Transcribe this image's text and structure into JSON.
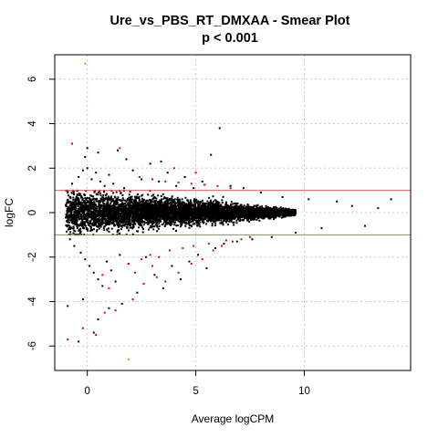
{
  "chart_data": {
    "type": "scatter",
    "title": "Ure_vs_PBS_RT_DMXAA - Smear Plot",
    "subtitle": "p < 0.001",
    "xlabel": "Average logCPM",
    "ylabel": "logFC",
    "xlim": [
      -1.5,
      14.9
    ],
    "ylim": [
      -7.1,
      7.1
    ],
    "x_ticks": [
      0,
      5,
      10
    ],
    "x_tick_labels": [
      "0",
      "5",
      "10"
    ],
    "y_ticks": [
      -6,
      -4,
      -2,
      0,
      2,
      4,
      6
    ],
    "y_tick_labels": [
      "-6",
      "-4",
      "-2",
      "0",
      "2",
      "4",
      "6"
    ],
    "grid": true,
    "threshold_lines": [
      1,
      -1
    ],
    "colors": {
      "not_significant": "#000000",
      "significant": "#e00000",
      "low_count": "#ff8c00",
      "threshold": "#e06060",
      "grid": "#c8c8c8"
    },
    "series": [
      {
        "color_key": "not_significant",
        "points": [
          [
            -0.9,
            0.9
          ],
          [
            -0.8,
            -1.2
          ],
          [
            -0.7,
            1.3
          ],
          [
            -0.6,
            -1.5
          ],
          [
            -0.4,
            1.6
          ],
          [
            -0.3,
            -1.8
          ],
          [
            -0.2,
            1.9
          ],
          [
            -0.1,
            -2.1
          ],
          [
            0.0,
            2.0
          ],
          [
            0.1,
            -2.4
          ],
          [
            0.2,
            1.5
          ],
          [
            0.3,
            -2.7
          ],
          [
            0.4,
            1.8
          ],
          [
            0.5,
            -3.0
          ],
          [
            0.6,
            1.4
          ],
          [
            0.7,
            -3.3
          ],
          [
            0.8,
            1.2
          ],
          [
            0.9,
            -2.2
          ],
          [
            1.0,
            1.7
          ],
          [
            1.1,
            -2.6
          ],
          [
            1.2,
            1.3
          ],
          [
            1.3,
            -3.1
          ],
          [
            1.4,
            2.8
          ],
          [
            1.5,
            -1.9
          ],
          [
            1.7,
            1.1
          ],
          [
            1.9,
            -2.3
          ],
          [
            2.1,
            1.9
          ],
          [
            2.3,
            -3.6
          ],
          [
            2.5,
            1.5
          ],
          [
            2.7,
            -2.0
          ],
          [
            2.9,
            2.2
          ],
          [
            3.1,
            -2.8
          ],
          [
            3.3,
            1.4
          ],
          [
            3.5,
            -3.4
          ],
          [
            3.7,
            1.8
          ],
          [
            3.9,
            -2.4
          ],
          [
            4.1,
            1.2
          ],
          [
            4.3,
            -3.0
          ],
          [
            4.5,
            1.6
          ],
          [
            4.7,
            -2.2
          ],
          [
            4.9,
            1.1
          ],
          [
            5.1,
            -1.9
          ],
          [
            5.3,
            1.4
          ],
          [
            5.5,
            -2.5
          ],
          [
            5.7,
            2.6
          ],
          [
            5.9,
            -1.6
          ],
          [
            6.1,
            3.8
          ],
          [
            6.3,
            -1.4
          ],
          [
            6.6,
            1.2
          ],
          [
            6.9,
            -1.3
          ],
          [
            7.2,
            1.1
          ],
          [
            7.6,
            -1.2
          ],
          [
            8.0,
            0.9
          ],
          [
            8.5,
            -1.1
          ],
          [
            9.0,
            0.7
          ],
          [
            9.6,
            -0.9
          ],
          [
            10.2,
            0.6
          ],
          [
            10.8,
            -0.7
          ],
          [
            11.5,
            0.5
          ],
          [
            12.2,
            0.3
          ],
          [
            12.8,
            -0.6
          ],
          [
            13.4,
            0.2
          ],
          [
            14.0,
            0.6
          ],
          [
            -0.9,
            -4.2
          ],
          [
            -0.2,
            -3.9
          ],
          [
            0.5,
            -4.8
          ],
          [
            1.0,
            -4.3
          ],
          [
            1.6,
            -4.1
          ],
          [
            0.3,
            -5.4
          ],
          [
            -0.4,
            -5.8
          ],
          [
            -0.1,
            2.5
          ],
          [
            0.5,
            2.7
          ],
          [
            1.8,
            2.4
          ],
          [
            3.4,
            2.3
          ],
          [
            0.0,
            2.9
          ]
        ]
      },
      {
        "color_key": "significant",
        "points": [
          [
            -0.7,
            3.1
          ],
          [
            1.5,
            2.9
          ],
          [
            -0.9,
            -5.7
          ],
          [
            -0.2,
            -5.2
          ],
          [
            0.4,
            -5.5
          ],
          [
            0.8,
            -4.5
          ],
          [
            1.3,
            -4.4
          ],
          [
            2.1,
            -3.9
          ],
          [
            2.6,
            -3.2
          ],
          [
            3.2,
            -2.9
          ],
          [
            3.6,
            -3.1
          ],
          [
            4.2,
            -2.7
          ],
          [
            4.8,
            -2.3
          ],
          [
            5.3,
            -2.1
          ],
          [
            5.8,
            -1.7
          ],
          [
            6.2,
            -1.5
          ],
          [
            6.7,
            -1.3
          ],
          [
            7.1,
            -1.2
          ],
          [
            7.5,
            -1.1
          ],
          [
            2.4,
            1.6
          ],
          [
            3.0,
            1.5
          ],
          [
            3.6,
            1.4
          ],
          [
            4.2,
            1.35
          ],
          [
            4.8,
            1.3
          ],
          [
            5.4,
            1.25
          ],
          [
            6.0,
            1.2
          ],
          [
            6.6,
            1.1
          ],
          [
            2.9,
            -1.9
          ],
          [
            3.3,
            -2.0
          ],
          [
            3.8,
            -1.7
          ],
          [
            4.4,
            -1.6
          ],
          [
            4.9,
            -1.5
          ],
          [
            5.6,
            -1.4
          ],
          [
            6.4,
            -1.25
          ],
          [
            1.9,
            -2.3
          ],
          [
            2.2,
            -2.7
          ],
          [
            2.5,
            -2.1
          ],
          [
            3.0,
            -2.4
          ],
          [
            1.0,
            -3.4
          ],
          [
            0.7,
            -2.8
          ],
          [
            5.0,
            1.8
          ],
          [
            4.0,
            2.0
          ]
        ]
      },
      {
        "color_key": "low_count",
        "points": [
          [
            -0.1,
            6.7
          ],
          [
            1.9,
            -6.6
          ]
        ]
      }
    ],
    "dense_band": {
      "description_free": true,
      "x_range": [
        -1.0,
        9.6
      ],
      "center": 0.0,
      "half_width_at_start": 1.05,
      "half_width_at_end": 0.12,
      "count": 6500
    }
  }
}
